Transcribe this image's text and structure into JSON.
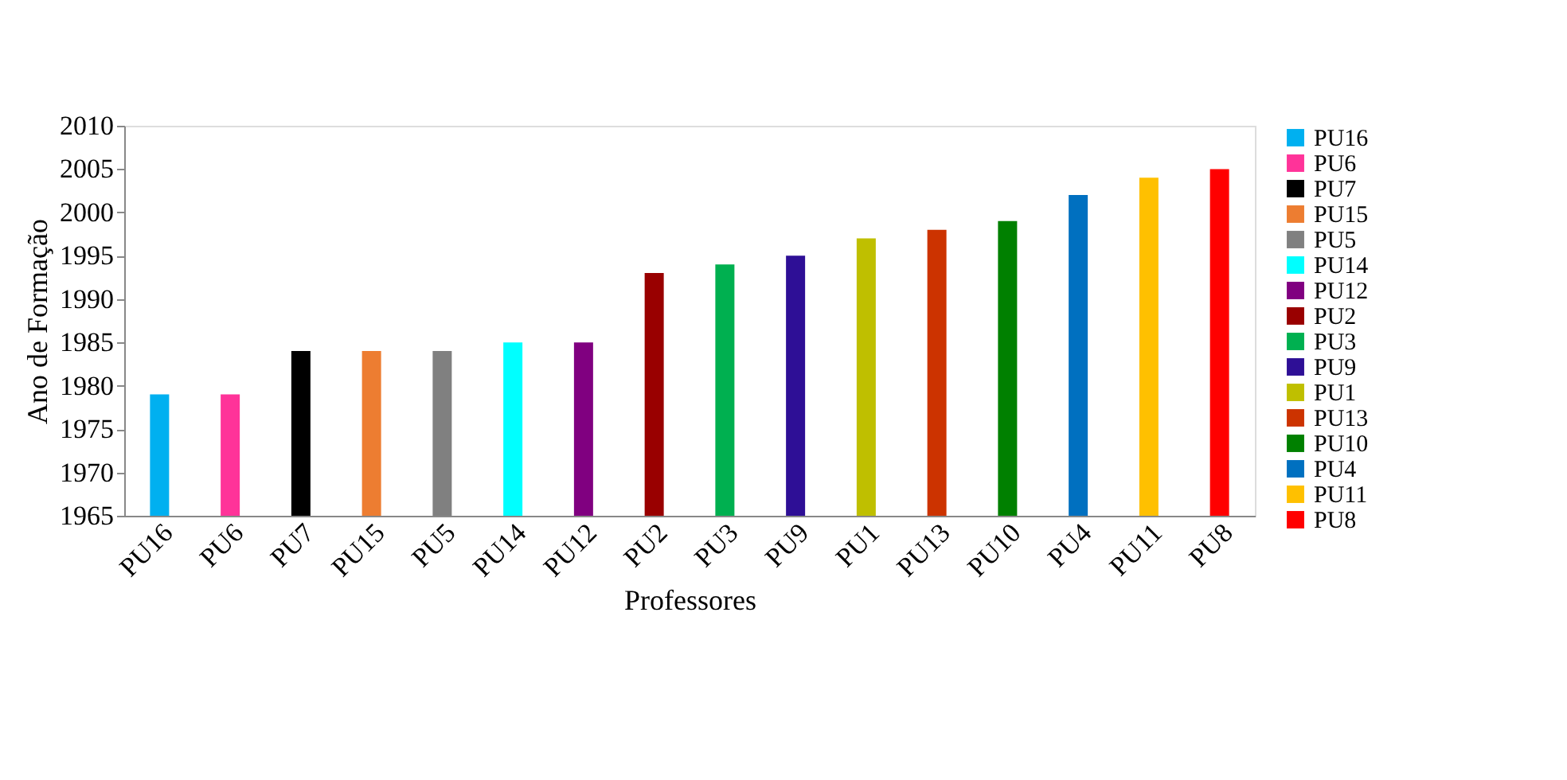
{
  "chart_data": {
    "type": "bar",
    "xlabel": "Professores",
    "ylabel": "Ano de Formação",
    "categories": [
      "PU16",
      "PU6",
      "PU7",
      "PU15",
      "PU5",
      "PU14",
      "PU12",
      "PU2",
      "PU3",
      "PU9",
      "PU1",
      "PU13",
      "PU10",
      "PU4",
      "PU11",
      "PU8"
    ],
    "series": [
      {
        "name": "PU16",
        "color": "#00b0f0",
        "values": [
          1979,
          null,
          null,
          null,
          null,
          null,
          null,
          null,
          null,
          null,
          null,
          null,
          null,
          null,
          null,
          null
        ]
      },
      {
        "name": "PU6",
        "color": "#ff3399",
        "values": [
          null,
          1979,
          null,
          null,
          null,
          null,
          null,
          null,
          null,
          null,
          null,
          null,
          null,
          null,
          null,
          null
        ]
      },
      {
        "name": "PU7",
        "color": "#000000",
        "values": [
          null,
          null,
          1984,
          null,
          null,
          null,
          null,
          null,
          null,
          null,
          null,
          null,
          null,
          null,
          null,
          null
        ]
      },
      {
        "name": "PU15",
        "color": "#ed7d31",
        "values": [
          null,
          null,
          null,
          1984,
          null,
          null,
          null,
          null,
          null,
          null,
          null,
          null,
          null,
          null,
          null,
          null
        ]
      },
      {
        "name": "PU5",
        "color": "#808080",
        "values": [
          null,
          null,
          null,
          null,
          1984,
          null,
          null,
          null,
          null,
          null,
          null,
          null,
          null,
          null,
          null,
          null
        ]
      },
      {
        "name": "PU14",
        "color": "#00ffff",
        "values": [
          null,
          null,
          null,
          null,
          null,
          1985,
          null,
          null,
          null,
          null,
          null,
          null,
          null,
          null,
          null,
          null
        ]
      },
      {
        "name": "PU12",
        "color": "#800080",
        "values": [
          null,
          null,
          null,
          null,
          null,
          null,
          1985,
          null,
          null,
          null,
          null,
          null,
          null,
          null,
          null,
          null
        ]
      },
      {
        "name": "PU2",
        "color": "#990000",
        "values": [
          null,
          null,
          null,
          null,
          null,
          null,
          null,
          1993,
          null,
          null,
          null,
          null,
          null,
          null,
          null,
          null
        ]
      },
      {
        "name": "PU3",
        "color": "#00b050",
        "values": [
          null,
          null,
          null,
          null,
          null,
          null,
          null,
          null,
          1994,
          null,
          null,
          null,
          null,
          null,
          null,
          null
        ]
      },
      {
        "name": "PU9",
        "color": "#2e0f96",
        "values": [
          null,
          null,
          null,
          null,
          null,
          null,
          null,
          null,
          null,
          1995,
          null,
          null,
          null,
          null,
          null,
          null
        ]
      },
      {
        "name": "PU1",
        "color": "#bfbf00",
        "values": [
          null,
          null,
          null,
          null,
          null,
          null,
          null,
          null,
          null,
          null,
          1997,
          null,
          null,
          null,
          null,
          null
        ]
      },
      {
        "name": "PU13",
        "color": "#cc3300",
        "values": [
          null,
          null,
          null,
          null,
          null,
          null,
          null,
          null,
          null,
          null,
          null,
          1998,
          null,
          null,
          null,
          null
        ]
      },
      {
        "name": "PU10",
        "color": "#008000",
        "values": [
          null,
          null,
          null,
          null,
          null,
          null,
          null,
          null,
          null,
          null,
          null,
          null,
          1999,
          null,
          null,
          null
        ]
      },
      {
        "name": "PU4",
        "color": "#0070c0",
        "values": [
          null,
          null,
          null,
          null,
          null,
          null,
          null,
          null,
          null,
          null,
          null,
          null,
          null,
          2002,
          null,
          null
        ]
      },
      {
        "name": "PU11",
        "color": "#ffc000",
        "values": [
          null,
          null,
          null,
          null,
          null,
          null,
          null,
          null,
          null,
          null,
          null,
          null,
          null,
          null,
          2004,
          null
        ]
      },
      {
        "name": "PU8",
        "color": "#ff0000",
        "values": [
          null,
          null,
          null,
          null,
          null,
          null,
          null,
          null,
          null,
          null,
          null,
          null,
          null,
          null,
          null,
          2005
        ]
      }
    ],
    "ylim": [
      1965,
      2010
    ],
    "yticks": [
      1965,
      1970,
      1975,
      1980,
      1985,
      1990,
      1995,
      2000,
      2005,
      2010
    ],
    "grid": false,
    "legend": "right"
  }
}
